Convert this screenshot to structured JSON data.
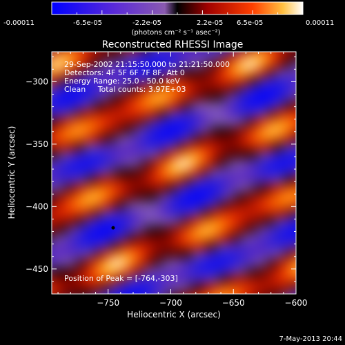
{
  "colorbar": {
    "tick_labels": [
      "-0.00011",
      "-6.5e-05",
      "-2.2e-05",
      "2.2e-05",
      "6.5e-05",
      "0.00011"
    ],
    "unit_label": "(photons cm⁻² s⁻¹ asec⁻²)"
  },
  "chart_data": {
    "type": "heatmap",
    "title": "Reconstructed RHESSI Image",
    "xlabel": "Heliocentric X (arcsec)",
    "ylabel": "Heliocentric Y (arcsec)",
    "xlim": [
      -795,
      -600
    ],
    "ylim": [
      -470,
      -276
    ],
    "x_ticks": [
      -750,
      -700,
      -650,
      -600
    ],
    "y_ticks": [
      -450,
      -400,
      -350,
      -300
    ],
    "clim": [
      -0.00011,
      0.00011
    ],
    "annotations": [
      "29-Sep-2002 21:15:50.000 to 21:21:50.000",
      "Detectors: 4F 5F 6F 7F 8F, Att 0",
      "Energy Range: 25.0 - 50.0 keV",
      "Clean     Total counts: 3.97E+03"
    ],
    "peak_label": "Position of Peak = [-764,-303]",
    "peak": [
      -764,
      -303
    ],
    "marker": [
      -746,
      -417
    ]
  },
  "footer": {
    "timestamp": "7-May-2013 20:44"
  }
}
